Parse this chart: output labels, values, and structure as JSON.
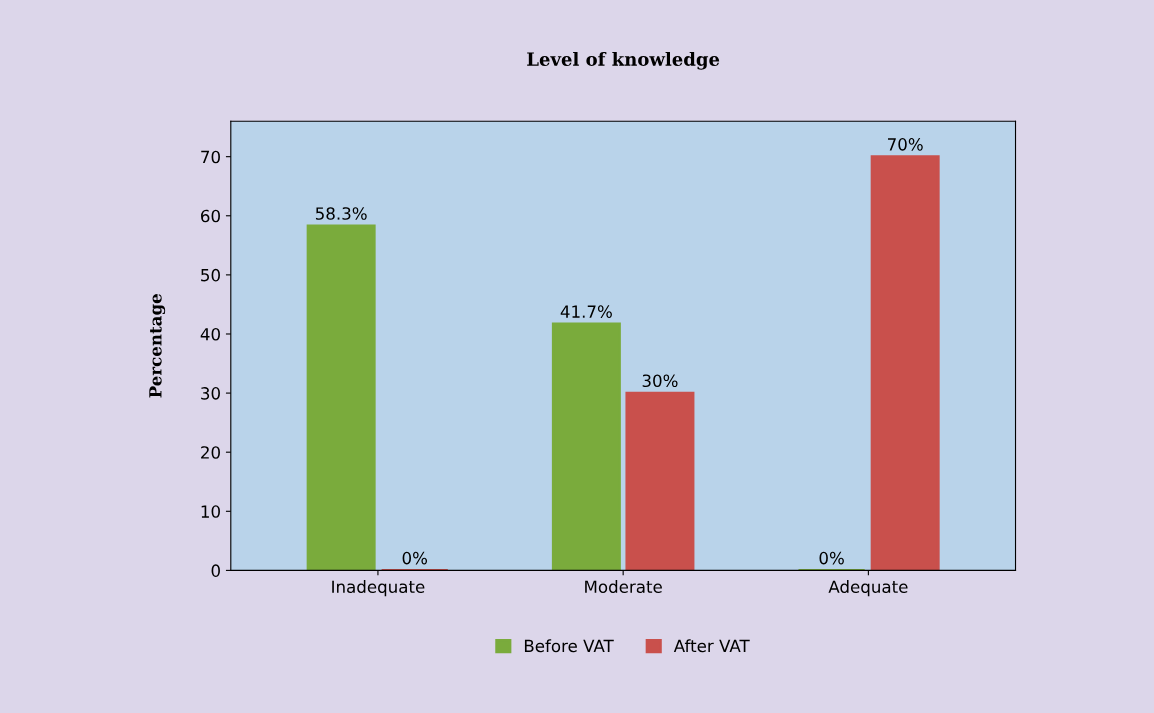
{
  "chart_data": {
    "type": "bar",
    "title": "Level of knowledge",
    "ylabel": "Percentage",
    "categories": [
      "Inadequate",
      "Moderate",
      "Adequate"
    ],
    "series": [
      {
        "name": "Before VAT",
        "color": "#7aab3c",
        "values": [
          58.3,
          41.7,
          0
        ],
        "value_labels": [
          "58.3%",
          "41.7%",
          "0%"
        ]
      },
      {
        "name": "After VAT",
        "color": "#c9504c",
        "values": [
          0,
          30,
          70
        ],
        "value_labels": [
          "0%",
          "30%",
          "70%"
        ]
      }
    ],
    "ylim": [
      0,
      76
    ],
    "yticks": [
      0,
      10,
      20,
      30,
      40,
      50,
      60,
      70
    ],
    "grid": false,
    "legend": "bottom"
  }
}
